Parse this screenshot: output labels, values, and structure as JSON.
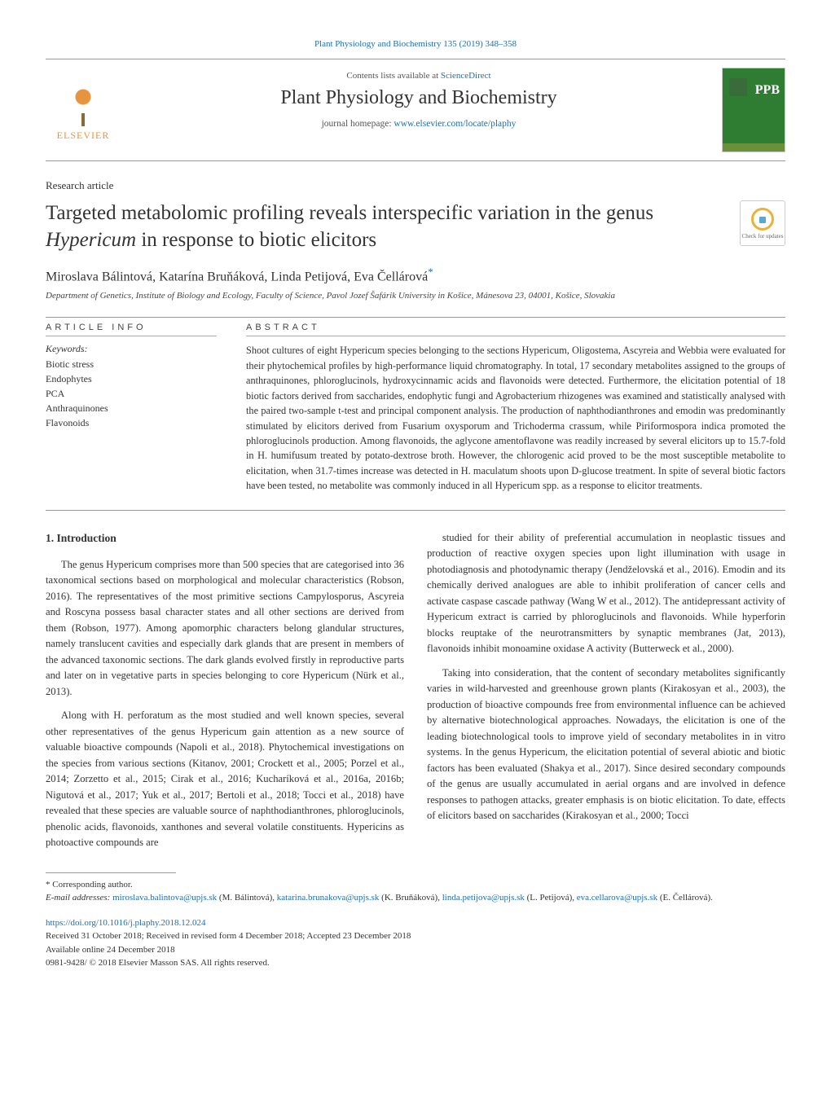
{
  "top_citation": "Plant Physiology and Biochemistry 135 (2019) 348–358",
  "header": {
    "contents_prefix": "Contents lists available at ",
    "contents_link": "ScienceDirect",
    "journal_title": "Plant Physiology and Biochemistry",
    "homepage_prefix": "journal homepage: ",
    "homepage_link": "www.elsevier.com/locate/plaphy",
    "publisher": "ELSEVIER",
    "cover_abbrev": "PPB"
  },
  "article_type": "Research article",
  "title_plain_prefix": "Targeted metabolomic profiling reveals interspecific variation in the genus ",
  "title_italic": "Hypericum",
  "title_plain_suffix": " in response to biotic elicitors",
  "updates_badge_text": "Check for updates",
  "authors_line": "Miroslava Bálintová, Katarína Bruňáková, Linda Petijová, Eva Čellárová",
  "corr_mark": "*",
  "affiliation": "Department of Genetics, Institute of Biology and Ecology, Faculty of Science, Pavol Jozef Šafárik University in Košice, Mánesova 23, 04001, Košice, Slovakia",
  "article_info_head": "ARTICLE INFO",
  "abstract_head": "ABSTRACT",
  "keywords_label": "Keywords:",
  "keywords": [
    "Biotic stress",
    "Endophytes",
    "PCA",
    "Anthraquinones",
    "Flavonoids"
  ],
  "abstract": "Shoot cultures of eight Hypericum species belonging to the sections Hypericum, Oligostema, Ascyreia and Webbia were evaluated for their phytochemical profiles by high-performance liquid chromatography. In total, 17 secondary metabolites assigned to the groups of anthraquinones, phloroglucinols, hydroxycinnamic acids and flavonoids were detected. Furthermore, the elicitation potential of 18 biotic factors derived from saccharides, endophytic fungi and Agrobacterium rhizogenes was examined and statistically analysed with the paired two-sample t-test and principal component analysis. The production of naphthodianthrones and emodin was predominantly stimulated by elicitors derived from Fusarium oxysporum and Trichoderma crassum, while Piriformospora indica promoted the phloroglucinols production. Among flavonoids, the aglycone amentoflavone was readily increased by several elicitors up to 15.7-fold in H. humifusum treated by potato-dextrose broth. However, the chlorogenic acid proved to be the most susceptible metabolite to elicitation, when 31.7-times increase was detected in H. maculatum shoots upon D-glucose treatment. In spite of several biotic factors have been tested, no metabolite was commonly induced in all Hypericum spp. as a response to elicitor treatments.",
  "intro_heading": "1. Introduction",
  "intro_p1": "The genus Hypericum comprises more than 500 species that are categorised into 36 taxonomical sections based on morphological and molecular characteristics (Robson, 2016). The representatives of the most primitive sections Campylosporus, Ascyreia and Roscyna possess basal character states and all other sections are derived from them (Robson, 1977). Among apomorphic characters belong glandular structures, namely translucent cavities and especially dark glands that are present in members of the advanced taxonomic sections. The dark glands evolved firstly in reproductive parts and later on in vegetative parts in species belonging to core Hypericum (Nürk et al., 2013).",
  "intro_p2": "Along with H. perforatum as the most studied and well known species, several other representatives of the genus Hypericum gain attention as a new source of valuable bioactive compounds (Napoli et al., 2018). Phytochemical investigations on the species from various sections (Kitanov, 2001; Crockett et al., 2005; Porzel et al., 2014; Zorzetto et al., 2015; Cirak et al., 2016; Kucharíková et al., 2016a, 2016b; Nigutová et al., 2017; Yuk et al., 2017; Bertoli et al., 2018; Tocci et al., 2018) have revealed that these species are valuable source of naphthodianthrones, phloroglucinols, phenolic acids, flavonoids, xanthones and several volatile constituents. Hypericins as photoactive compounds are",
  "intro_p3": "studied for their ability of preferential accumulation in neoplastic tissues and production of reactive oxygen species upon light illumination with usage in photodiagnosis and photodynamic therapy (Jendželovská et al., 2016). Emodin and its chemically derived analogues are able to inhibit proliferation of cancer cells and activate caspase cascade pathway (Wang W et al., 2012). The antidepressant activity of Hypericum extract is carried by phloroglucinols and flavonoids. While hyperforin blocks reuptake of the neurotransmitters by synaptic membranes (Jat, 2013), flavonoids inhibit monoamine oxidase A activity (Butterweck et al., 2000).",
  "intro_p4": "Taking into consideration, that the content of secondary metabolites significantly varies in wild-harvested and greenhouse grown plants (Kirakosyan et al., 2003), the production of bioactive compounds free from environmental influence can be achieved by alternative biotechnological approaches. Nowadays, the elicitation is one of the leading biotechnological tools to improve yield of secondary metabolites in in vitro systems. In the genus Hypericum, the elicitation potential of several abiotic and biotic factors has been evaluated (Shakya et al., 2017). Since desired secondary compounds of the genus are usually accumulated in aerial organs and are involved in defence responses to pathogen attacks, greater emphasis is on biotic elicitation. To date, effects of elicitors based on saccharides (Kirakosyan et al., 2000; Tocci",
  "footnote_corr": "* Corresponding author.",
  "footnote_emails_label": "E-mail addresses: ",
  "emails": [
    {
      "addr": "miroslava.balintova@upjs.sk",
      "who": "(M. Bálintová), "
    },
    {
      "addr": "katarina.brunakova@upjs.sk",
      "who": "(K. Bruňáková), "
    },
    {
      "addr": "linda.petijova@upjs.sk",
      "who": "(L. Petijová), "
    },
    {
      "addr": "eva.cellarova@upjs.sk",
      "who": "(E. Čellárová)."
    }
  ],
  "doi": "https://doi.org/10.1016/j.plaphy.2018.12.024",
  "history": "Received 31 October 2018; Received in revised form 4 December 2018; Accepted 23 December 2018",
  "available": "Available online 24 December 2018",
  "copyright": "0981-9428/ © 2018 Elsevier Masson SAS. All rights reserved.",
  "colors": {
    "link": "#1a6fb5",
    "cover_bg": "#2e7d32",
    "publisher": "#e7943f"
  }
}
